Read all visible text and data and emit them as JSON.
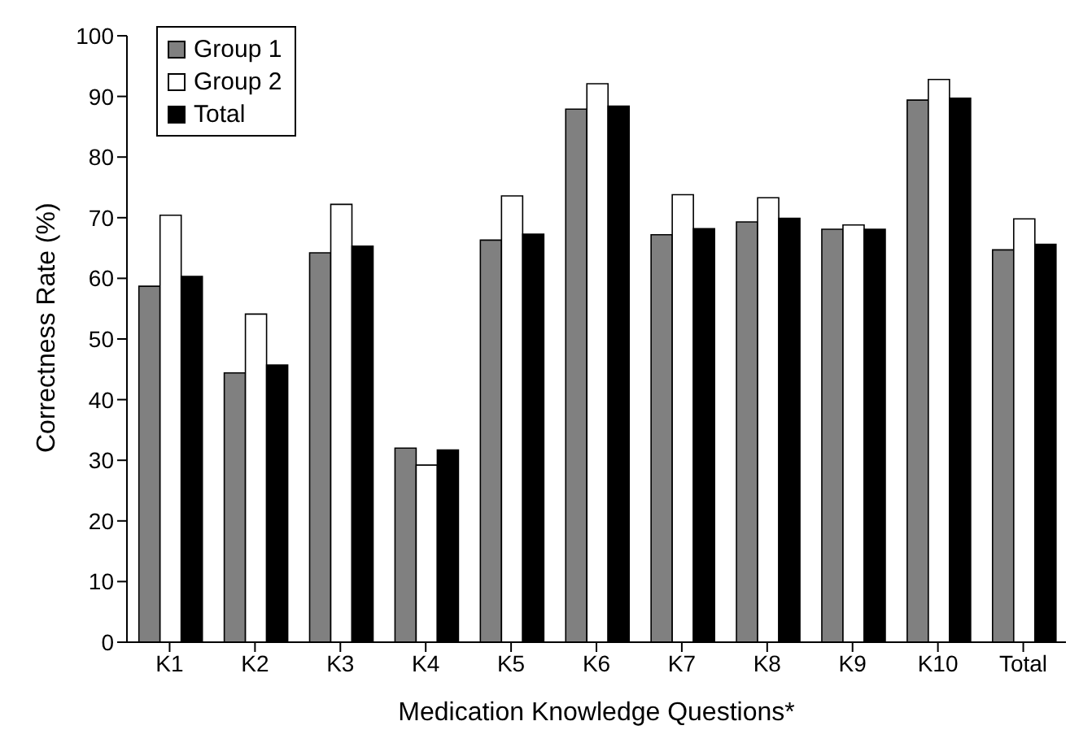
{
  "chart_data": {
    "type": "bar",
    "xlabel": "Medication Knowledge Questions*",
    "ylabel": "Correctness Rate (%)",
    "categories": [
      "K1",
      "K2",
      "K3",
      "K4",
      "K5",
      "K6",
      "K7",
      "K8",
      "K9",
      "K10",
      "Total"
    ],
    "series": [
      {
        "name": "Group 1",
        "color": "#808080",
        "values": [
          58.7,
          44.4,
          64.2,
          32.0,
          66.3,
          87.9,
          67.2,
          69.3,
          68.1,
          89.4,
          64.7
        ]
      },
      {
        "name": "Group 2",
        "color": "#ffffff",
        "values": [
          70.4,
          54.1,
          72.2,
          29.2,
          73.6,
          92.1,
          73.8,
          73.3,
          68.8,
          92.8,
          69.8
        ]
      },
      {
        "name": "Total",
        "color": "#000000",
        "values": [
          60.3,
          45.7,
          65.3,
          31.7,
          67.3,
          88.4,
          68.2,
          69.9,
          68.1,
          89.7,
          65.6
        ]
      }
    ],
    "ylim": [
      0,
      100
    ],
    "yticks": [
      0,
      10,
      20,
      30,
      40,
      50,
      60,
      70,
      80,
      90,
      100
    ],
    "grid": false,
    "legend": "top left"
  }
}
